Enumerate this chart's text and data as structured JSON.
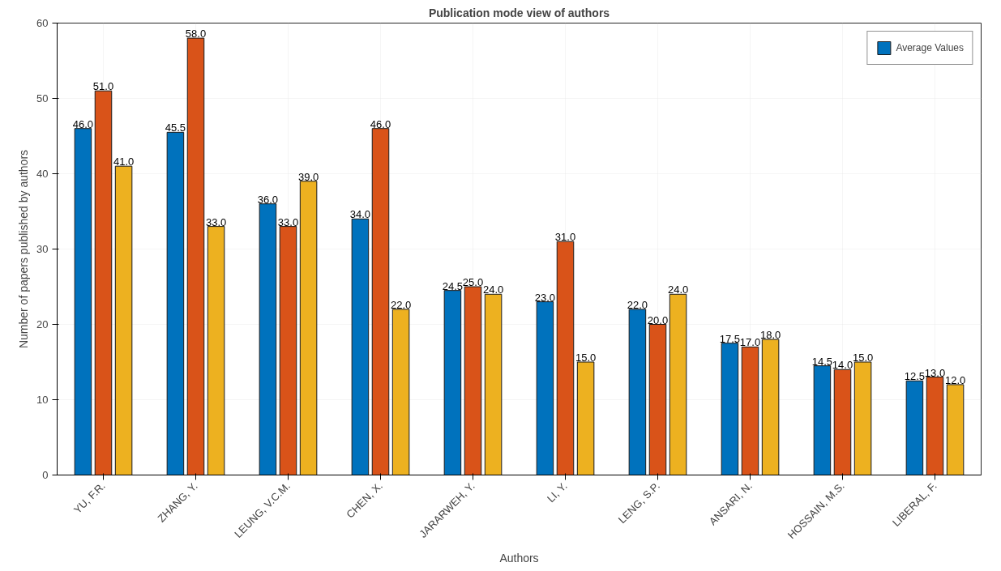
{
  "chart_data": {
    "type": "bar",
    "title": "Publication mode view of authors",
    "xlabel": "Authors",
    "ylabel": "Number of papers published by authors",
    "categories": [
      "YU, F.R.",
      "ZHANG, Y.",
      "LEUNG, V.C.M.",
      "CHEN, X.",
      "JARARWEH, Y.",
      "LI, Y.",
      "LENG, S.P.",
      "ANSARI, N.",
      "HOSSAIN, M.S.",
      "LIBERAL, F."
    ],
    "series": [
      {
        "name": "Average Values",
        "color": "#0072bd",
        "values": [
          46.0,
          45.5,
          36.0,
          34.0,
          24.5,
          23.0,
          22.0,
          17.5,
          14.5,
          12.5
        ],
        "value_labels": [
          "46.0",
          "45.5",
          "36.0",
          "34.0",
          "24.5",
          "23.0",
          "22.0",
          "17.5",
          "14.5",
          "12.5"
        ]
      },
      {
        "color": "#d95319",
        "values": [
          51.0,
          58.0,
          33.0,
          46.0,
          25.0,
          31.0,
          20.0,
          17.0,
          14.0,
          13.0
        ],
        "value_labels": [
          "51.0",
          "58.0",
          "33.0",
          "46.0",
          "25.0",
          "31.0",
          "20.0",
          "17.0",
          "14.0",
          "13.0"
        ]
      },
      {
        "color": "#edb120",
        "values": [
          41.0,
          33.0,
          39.0,
          22.0,
          24.0,
          15.0,
          24.0,
          18.0,
          15.0,
          12.0
        ],
        "value_labels": [
          "41.0",
          "33.0",
          "39.0",
          "22.0",
          "24.0",
          "15.0",
          "24.0",
          "18.0",
          "15.0",
          "12.0"
        ]
      }
    ],
    "ylim": [
      0,
      60
    ],
    "yticks": [
      0,
      10,
      20,
      30,
      40,
      50,
      60
    ],
    "grid": true,
    "legend": "top right"
  }
}
